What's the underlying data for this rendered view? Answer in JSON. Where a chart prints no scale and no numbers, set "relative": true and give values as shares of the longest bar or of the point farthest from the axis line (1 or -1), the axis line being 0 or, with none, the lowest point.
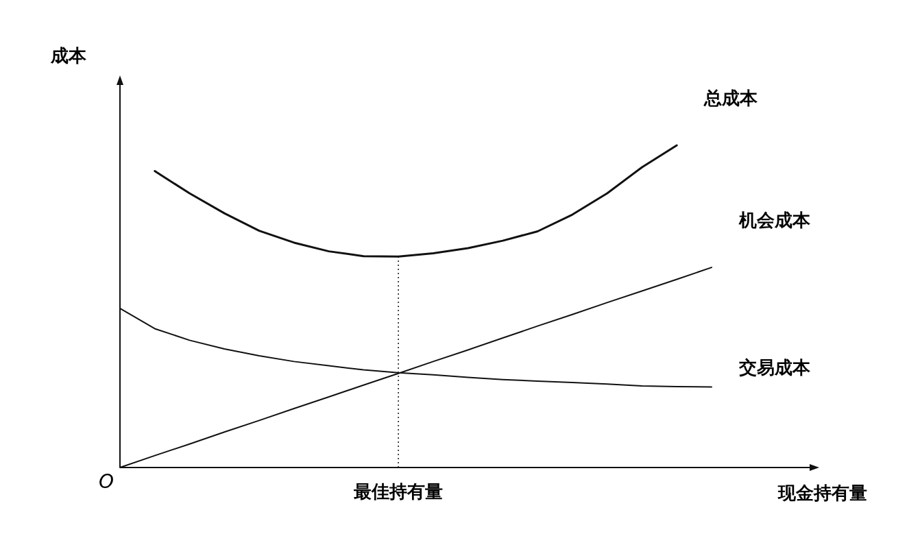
{
  "chart_data": {
    "type": "line",
    "relative": true,
    "xlabel": "现金持有量",
    "ylabel": "成本",
    "annotations": [
      "O"
    ],
    "legend": false,
    "grid": false,
    "marker": "none",
    "line_style": "solid",
    "categories": [
      null,
      null,
      null,
      null,
      null,
      null,
      null,
      null,
      null,
      null,
      null,
      null,
      null,
      null,
      null,
      null,
      null,
      null
    ],
    "ref_lines": [
      {
        "axis": "x",
        "label": "最佳持有量",
        "line_style": "dotted",
        "color": "#111111"
      }
    ],
    "series": [
      {
        "name": "总成本",
        "color": "#111111",
        "values": [
          null,
          0.92,
          0.851,
          0.789,
          0.735,
          0.698,
          0.671,
          0.656,
          0.655,
          0.665,
          0.681,
          0.704,
          0.733,
          0.785,
          0.851,
          0.932,
          1.0,
          null
        ]
      },
      {
        "name": "机会成本",
        "color": "#111111",
        "values": [
          0,
          0.037,
          0.073,
          0.11,
          0.146,
          0.183,
          0.219,
          0.256,
          0.292,
          0.329,
          0.365,
          0.402,
          0.439,
          0.475,
          0.512,
          0.548,
          0.584,
          0.621
        ]
      },
      {
        "name": "交易成本",
        "color": "#111111",
        "values": [
          0.494,
          0.431,
          0.395,
          0.368,
          0.347,
          0.329,
          0.316,
          0.303,
          0.294,
          0.288,
          0.28,
          0.273,
          0.268,
          0.264,
          0.259,
          0.253,
          0.251,
          0.25
        ]
      }
    ]
  }
}
